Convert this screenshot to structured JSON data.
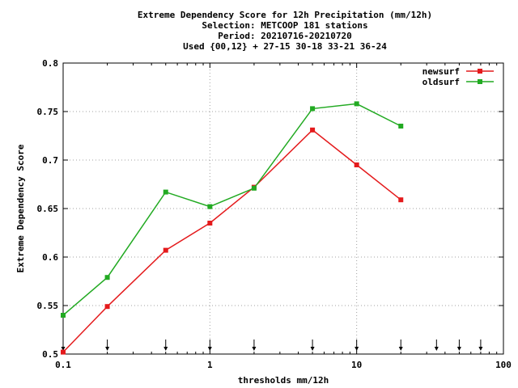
{
  "chart_data": {
    "type": "line",
    "title_lines": [
      "Extreme Dependency Score  for 12h Precipitation (mm/12h)",
      "Selection: METCOOP    181 stations",
      "Period: 20210716-20210720",
      "Used {00,12} + 27-15 30-18 33-21 36-24"
    ],
    "xlabel": "thresholds mm/12h",
    "ylabel": "Extreme Dependency Score",
    "x_scale": "log",
    "xlim": [
      0.1,
      100
    ],
    "ylim": [
      0.5,
      0.8
    ],
    "x_ticks": [
      0.1,
      1,
      10,
      100
    ],
    "x_tick_labels": [
      "0.1",
      "1",
      "10",
      "100"
    ],
    "y_ticks": [
      0.5,
      0.55,
      0.6,
      0.65,
      0.7,
      0.75,
      0.8
    ],
    "y_tick_labels": [
      "0.5",
      "0.55",
      "0.6",
      "0.65",
      "0.7",
      "0.75",
      "0.8"
    ],
    "grid": true,
    "legend_position": "top-right",
    "threshold_markers": [
      0.1,
      0.2,
      0.5,
      1,
      2,
      5,
      10,
      20,
      35,
      50,
      70
    ],
    "series": [
      {
        "name": "newsurf",
        "color": "#e41a1c",
        "x": [
          0.1,
          0.2,
          0.5,
          1,
          2,
          5,
          10,
          20
        ],
        "y": [
          0.502,
          0.549,
          0.607,
          0.635,
          0.672,
          0.731,
          0.695,
          0.659
        ]
      },
      {
        "name": "oldsurf",
        "color": "#22aa22",
        "x": [
          0.1,
          0.2,
          0.5,
          1,
          2,
          5,
          10,
          20
        ],
        "y": [
          0.54,
          0.579,
          0.667,
          0.652,
          0.671,
          0.753,
          0.758,
          0.735
        ]
      }
    ]
  }
}
